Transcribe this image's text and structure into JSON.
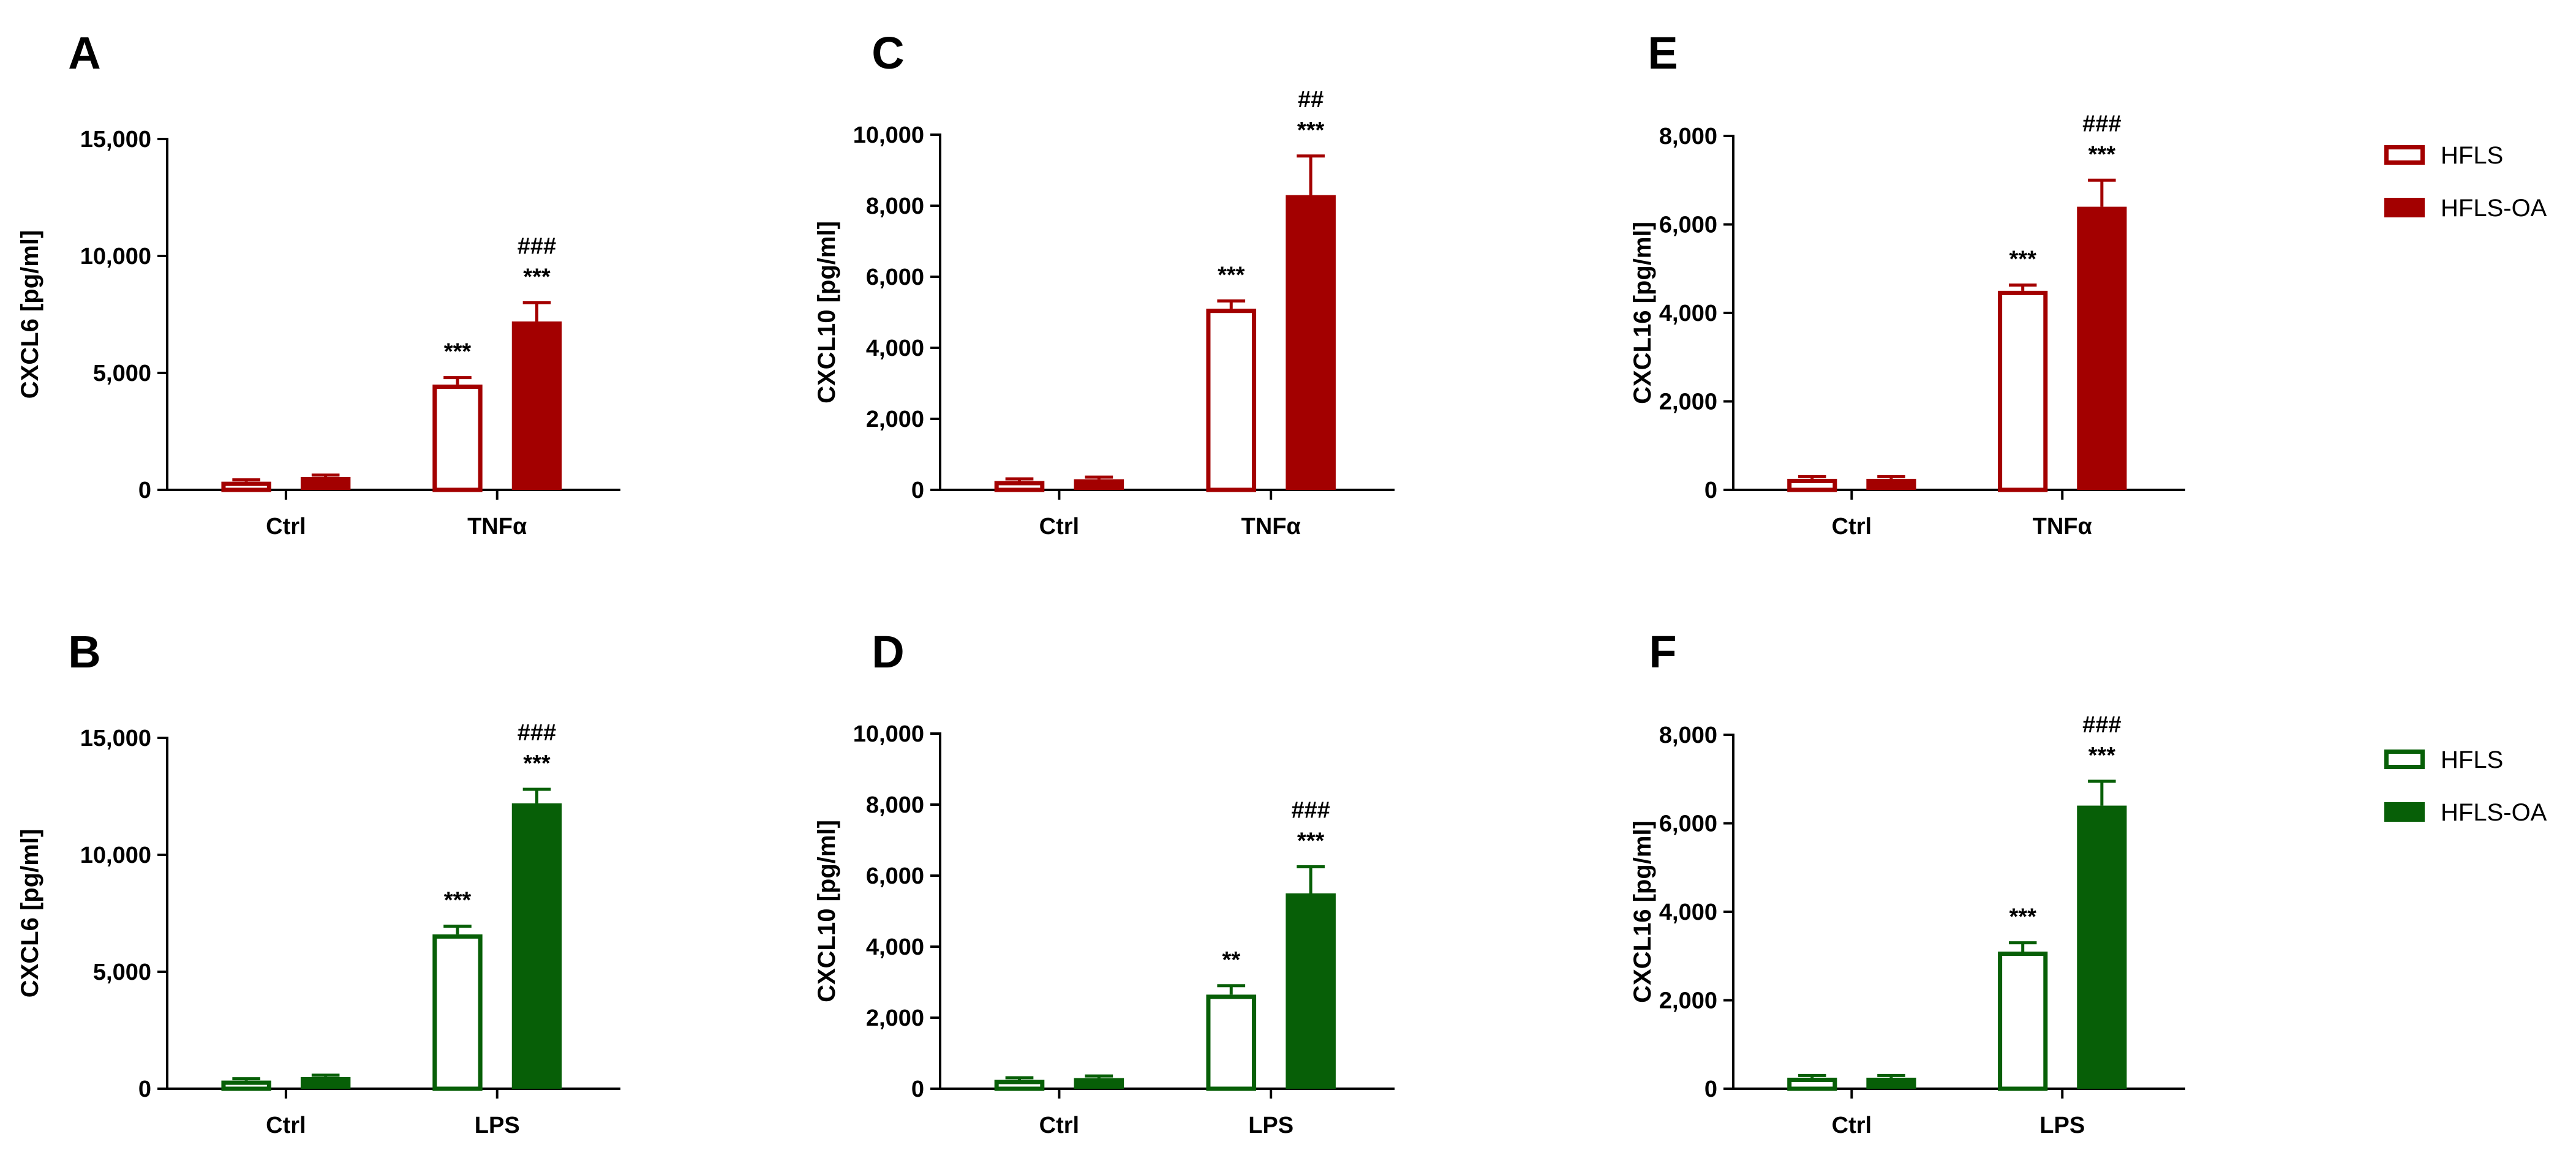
{
  "colors": {
    "red": "#a30000",
    "green": "#075f07",
    "axis": "#000000"
  },
  "legends": [
    {
      "key": "tnf",
      "color": "#a30000",
      "items": [
        {
          "label": "HFLS",
          "filled": false
        },
        {
          "label": "HFLS-OA",
          "filled": true
        }
      ]
    },
    {
      "key": "lps",
      "color": "#075f07",
      "items": [
        {
          "label": "HFLS",
          "filled": false
        },
        {
          "label": "HFLS-OA",
          "filled": true
        }
      ]
    }
  ],
  "chart_data": [
    {
      "panel": "A",
      "type": "bar",
      "color": "#a30000",
      "ylabel": "CXCL6 [pg/ml]",
      "ylim": [
        0,
        15000
      ],
      "yticks": [
        0,
        5000,
        10000,
        15000
      ],
      "ytick_labels": [
        "0",
        "5,000",
        "10,000",
        "15,000"
      ],
      "categories": [
        "Ctrl",
        "TNFα"
      ],
      "series": [
        {
          "name": "HFLS",
          "filled": false,
          "values": [
            350,
            4500
          ],
          "errors": [
            80,
            300
          ],
          "stars": [
            "",
            "***"
          ],
          "hashes": [
            "",
            ""
          ]
        },
        {
          "name": "HFLS-OA",
          "filled": true,
          "values": [
            550,
            7200
          ],
          "errors": [
            80,
            800
          ],
          "stars": [
            "",
            "***"
          ],
          "hashes": [
            "",
            "###"
          ]
        }
      ]
    },
    {
      "panel": "B",
      "type": "bar",
      "color": "#075f07",
      "ylabel": "CXCL6 [pg/ml]",
      "ylim": [
        0,
        15000
      ],
      "yticks": [
        0,
        5000,
        10000,
        15000
      ],
      "ytick_labels": [
        "0",
        "5,000",
        "10,000",
        "15,000"
      ],
      "categories": [
        "Ctrl",
        "LPS"
      ],
      "series": [
        {
          "name": "HFLS",
          "filled": false,
          "values": [
            350,
            6600
          ],
          "errors": [
            80,
            350
          ],
          "stars": [
            "",
            "***"
          ],
          "hashes": [
            "",
            ""
          ]
        },
        {
          "name": "HFLS-OA",
          "filled": true,
          "values": [
            500,
            12200
          ],
          "errors": [
            80,
            600
          ],
          "stars": [
            "",
            "***"
          ],
          "hashes": [
            "",
            "###"
          ]
        }
      ]
    },
    {
      "panel": "C",
      "type": "bar",
      "color": "#a30000",
      "ylabel": "CXCL10 [pg/ml]",
      "ylim": [
        0,
        10000
      ],
      "yticks": [
        0,
        2000,
        4000,
        6000,
        8000,
        10000
      ],
      "ytick_labels": [
        "0",
        "2,000",
        "4,000",
        "6,000",
        "8,000",
        "10,000"
      ],
      "categories": [
        "Ctrl",
        "TNFα"
      ],
      "series": [
        {
          "name": "HFLS",
          "filled": false,
          "values": [
            250,
            5100
          ],
          "errors": [
            60,
            220
          ],
          "stars": [
            "",
            "***"
          ],
          "hashes": [
            "",
            ""
          ]
        },
        {
          "name": "HFLS-OA",
          "filled": true,
          "values": [
            300,
            8300
          ],
          "errors": [
            60,
            1100
          ],
          "stars": [
            "",
            "***"
          ],
          "hashes": [
            "",
            "##"
          ]
        }
      ]
    },
    {
      "panel": "D",
      "type": "bar",
      "color": "#075f07",
      "ylabel": "CXCL10 [pg/ml]",
      "ylim": [
        0,
        10000
      ],
      "yticks": [
        0,
        2000,
        4000,
        6000,
        8000,
        10000
      ],
      "ytick_labels": [
        "0",
        "2,000",
        "4,000",
        "6,000",
        "8,000",
        "10,000"
      ],
      "categories": [
        "Ctrl",
        "LPS"
      ],
      "series": [
        {
          "name": "HFLS",
          "filled": false,
          "values": [
            250,
            2650
          ],
          "errors": [
            60,
            250
          ],
          "stars": [
            "",
            "**"
          ],
          "hashes": [
            "",
            ""
          ]
        },
        {
          "name": "HFLS-OA",
          "filled": true,
          "values": [
            300,
            5500
          ],
          "errors": [
            60,
            750
          ],
          "stars": [
            "",
            "***"
          ],
          "hashes": [
            "",
            "###"
          ]
        }
      ]
    },
    {
      "panel": "E",
      "type": "bar",
      "color": "#a30000",
      "ylabel": "CXCL16 [pg/ml]",
      "ylim": [
        0,
        8000
      ],
      "yticks": [
        0,
        2000,
        4000,
        6000,
        8000
      ],
      "ytick_labels": [
        "0",
        "2,000",
        "4,000",
        "6,000",
        "8,000"
      ],
      "categories": [
        "Ctrl",
        "TNFα"
      ],
      "series": [
        {
          "name": "HFLS",
          "filled": false,
          "values": [
            250,
            4500
          ],
          "errors": [
            50,
            130
          ],
          "stars": [
            "",
            "***"
          ],
          "hashes": [
            "",
            ""
          ]
        },
        {
          "name": "HFLS-OA",
          "filled": true,
          "values": [
            250,
            6400
          ],
          "errors": [
            50,
            600
          ],
          "stars": [
            "",
            "***"
          ],
          "hashes": [
            "",
            "###"
          ]
        }
      ]
    },
    {
      "panel": "F",
      "type": "bar",
      "color": "#075f07",
      "ylabel": "CXCL16 [pg/ml]",
      "ylim": [
        0,
        8000
      ],
      "yticks": [
        0,
        2000,
        4000,
        6000,
        8000
      ],
      "ytick_labels": [
        "0",
        "2,000",
        "4,000",
        "6,000",
        "8,000"
      ],
      "categories": [
        "Ctrl",
        "LPS"
      ],
      "series": [
        {
          "name": "HFLS",
          "filled": false,
          "values": [
            250,
            3100
          ],
          "errors": [
            50,
            200
          ],
          "stars": [
            "",
            "***"
          ],
          "hashes": [
            "",
            ""
          ]
        },
        {
          "name": "HFLS-OA",
          "filled": true,
          "values": [
            250,
            6400
          ],
          "errors": [
            50,
            550
          ],
          "stars": [
            "",
            "***"
          ],
          "hashes": [
            "",
            "###"
          ]
        }
      ]
    }
  ]
}
